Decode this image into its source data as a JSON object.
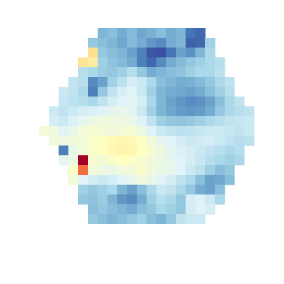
{
  "chart_data": {
    "type": "heatmap",
    "tick_labels": false,
    "zlim": [
      0,
      10
    ],
    "cells": [
      [
        null,
        null,
        null,
        null,
        null,
        null,
        2.2,
        2.4,
        2.0,
        2.3,
        1.9,
        2.1,
        2.4,
        2.0,
        2.2,
        1.0,
        0.8,
        null,
        null,
        null,
        null,
        null,
        null
      ],
      [
        null,
        null,
        null,
        null,
        null,
        2.6,
        2.4,
        2.2,
        1.9,
        2.3,
        2.0,
        1.6,
        1.4,
        2.0,
        2.2,
        0.7,
        0.8,
        2.8,
        null,
        null,
        null,
        null,
        null
      ],
      [
        null,
        null,
        null,
        null,
        null,
        6.0,
        2.6,
        2.4,
        2.2,
        1.8,
        1.2,
        0.5,
        0.4,
        1.0,
        1.8,
        1.5,
        2.2,
        3.0,
        null,
        null,
        null,
        null,
        null
      ],
      [
        null,
        null,
        null,
        null,
        5.8,
        5.6,
        2.8,
        2.5,
        2.3,
        2.0,
        1.2,
        0.8,
        1.4,
        2.0,
        2.3,
        2.6,
        2.8,
        3.0,
        3.2,
        null,
        null,
        null,
        null
      ],
      [
        null,
        null,
        null,
        null,
        3.2,
        3.0,
        2.7,
        2.6,
        2.8,
        3.2,
        2.6,
        2.0,
        2.2,
        2.4,
        2.5,
        2.8,
        3.0,
        3.0,
        3.3,
        null,
        null,
        null,
        null
      ],
      [
        null,
        null,
        null,
        3.4,
        3.2,
        1.4,
        1.8,
        2.8,
        3.3,
        3.8,
        3.6,
        3.0,
        2.4,
        2.2,
        2.0,
        2.1,
        2.3,
        2.6,
        3.0,
        3.4,
        null,
        null,
        null
      ],
      [
        null,
        null,
        3.6,
        3.4,
        3.0,
        1.2,
        2.6,
        3.4,
        3.8,
        4.0,
        3.6,
        2.8,
        2.2,
        2.0,
        1.9,
        1.8,
        2.0,
        2.4,
        2.8,
        3.2,
        null,
        null,
        null
      ],
      [
        null,
        null,
        3.5,
        3.3,
        3.2,
        3.0,
        3.4,
        3.8,
        4.0,
        4.1,
        3.8,
        3.0,
        2.2,
        1.8,
        1.6,
        1.4,
        1.5,
        1.8,
        2.4,
        3.0,
        3.4,
        null,
        null
      ],
      [
        null,
        3.6,
        3.4,
        3.6,
        3.8,
        3.9,
        4.0,
        4.2,
        4.3,
        4.1,
        3.6,
        2.8,
        2.2,
        1.9,
        1.7,
        1.6,
        1.7,
        2.0,
        2.6,
        3.0,
        3.2,
        3.4,
        null
      ],
      [
        null,
        3.8,
        3.6,
        3.9,
        4.2,
        4.4,
        4.5,
        4.5,
        4.4,
        4.3,
        4.0,
        3.4,
        2.8,
        2.6,
        2.5,
        2.6,
        2.8,
        3.0,
        3.2,
        3.4,
        3.5,
        3.6,
        null
      ],
      [
        4.6,
        4.5,
        4.0,
        4.3,
        4.6,
        4.7,
        4.6,
        4.5,
        4.6,
        4.7,
        4.4,
        4.0,
        3.6,
        3.4,
        3.3,
        3.4,
        3.5,
        3.6,
        3.6,
        3.5,
        3.4,
        3.6,
        null
      ],
      [
        null,
        4.5,
        4.4,
        4.5,
        4.6,
        4.8,
        5.0,
        5.2,
        5.3,
        5.2,
        4.9,
        4.5,
        4.2,
        4.0,
        3.8,
        3.6,
        3.7,
        3.8,
        3.6,
        3.4,
        3.2,
        3.3,
        null
      ],
      [
        null,
        null,
        1.2,
        4.3,
        4.6,
        4.8,
        5.0,
        5.3,
        5.4,
        5.3,
        5.0,
        4.7,
        4.4,
        4.1,
        3.9,
        3.8,
        3.6,
        3.4,
        3.2,
        3.0,
        3.2,
        null,
        null
      ],
      [
        null,
        null,
        4.2,
        4.4,
        10.0,
        4.7,
        4.6,
        4.8,
        5.0,
        4.9,
        4.7,
        4.5,
        4.4,
        4.2,
        4.0,
        3.8,
        3.5,
        3.2,
        3.0,
        2.8,
        3.0,
        null,
        null
      ],
      [
        null,
        null,
        null,
        4.8,
        8.0,
        4.6,
        4.4,
        4.3,
        4.5,
        4.6,
        4.8,
        4.5,
        4.3,
        4.2,
        4.0,
        3.6,
        3.3,
        2.8,
        2.4,
        2.6,
        null,
        null,
        null
      ],
      [
        null,
        null,
        null,
        4.6,
        4.0,
        3.8,
        3.6,
        3.8,
        4.0,
        4.2,
        4.5,
        4.3,
        4.0,
        3.8,
        3.4,
        3.0,
        2.4,
        1.8,
        1.9,
        2.4,
        null,
        null,
        null
      ],
      [
        null,
        null,
        null,
        null,
        2.8,
        2.6,
        2.8,
        3.0,
        2.2,
        1.8,
        2.4,
        3.0,
        3.6,
        3.4,
        3.0,
        2.6,
        2.0,
        1.8,
        2.4,
        null,
        null,
        null,
        null
      ],
      [
        null,
        null,
        null,
        null,
        2.6,
        2.5,
        2.7,
        2.2,
        1.6,
        1.4,
        2.0,
        2.8,
        3.2,
        3.0,
        2.6,
        3.8,
        4.0,
        3.6,
        3.0,
        null,
        null,
        null,
        null
      ],
      [
        null,
        null,
        null,
        null,
        null,
        2.4,
        2.6,
        2.4,
        2.2,
        2.0,
        2.4,
        2.6,
        3.0,
        2.8,
        2.6,
        3.8,
        4.0,
        3.8,
        null,
        null,
        null,
        null,
        null
      ],
      [
        null,
        null,
        null,
        null,
        null,
        2.6,
        2.4,
        2.2,
        2.4,
        2.6,
        2.8,
        2.4,
        2.2,
        2.6,
        3.4,
        3.6,
        3.6,
        null,
        null,
        null,
        null,
        null,
        null
      ]
    ]
  }
}
